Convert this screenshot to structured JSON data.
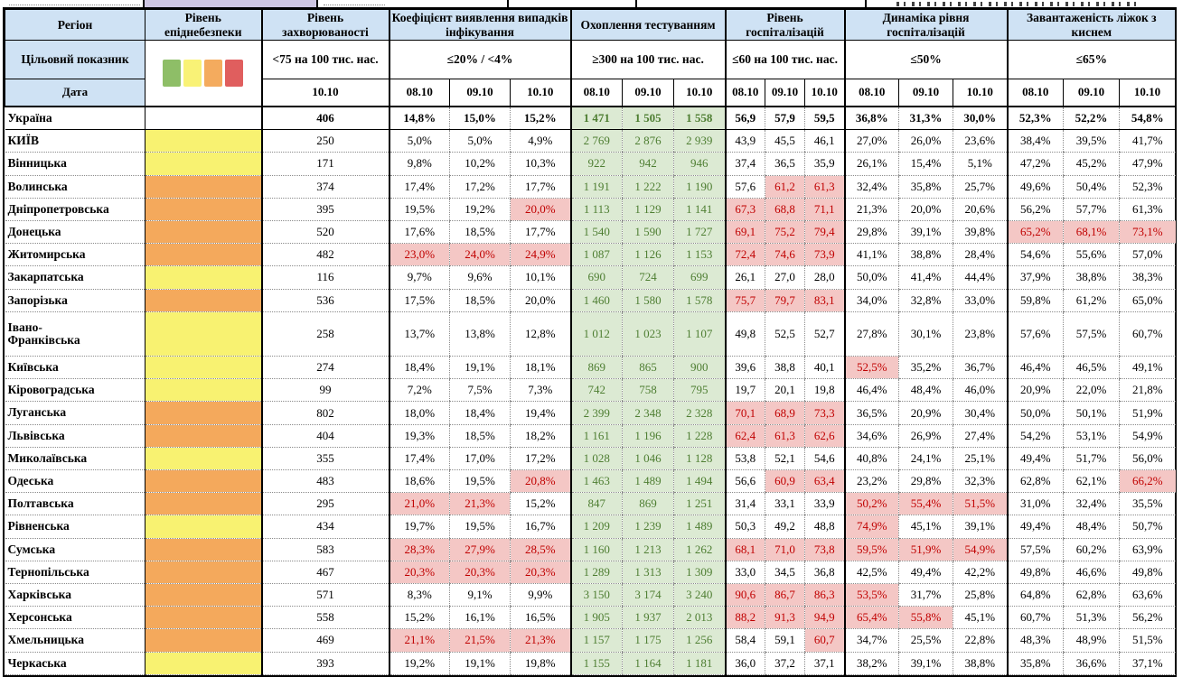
{
  "header": {
    "col_region": "Регіон",
    "col_danger": "Рівень епіднебезпеки",
    "col_morbidity": "Рівень захворюваності",
    "target_row_label": "Цільовий показник",
    "date_row_label": "Дата",
    "morbidity_criteria": "<75 на 100 тис. нас.",
    "morbidity_date": "10.10",
    "dates": [
      "08.10",
      "09.10",
      "10.10"
    ],
    "groups": [
      {
        "label": "Коефіцієнт виявлення випадків інфікування",
        "criteria": "≤20% / <4%"
      },
      {
        "label": "Охоплення тестуванням",
        "criteria": "≥300 на 100 тис. нас."
      },
      {
        "label": "Рівень госпіталізацій",
        "criteria": "≤60 на 100 тис. нас."
      },
      {
        "label": "Динаміка рівня госпіталізацій",
        "criteria": "≤50%"
      },
      {
        "label": "Завантаженість ліжок з киснем",
        "criteria": "≤65%"
      }
    ],
    "legend_colors": [
      "#8ebe67",
      "#f9f276",
      "#f4ab5e",
      "#e05e5e"
    ]
  },
  "colors": {
    "header_blue": "#cfe2f4",
    "danger_yellow": "#f8f271",
    "danger_orange": "#f4a95c",
    "testing_green_bg": "#dcead3",
    "testing_green_text": "#4e7e32",
    "alert_pink_bg": "#f4c7c5",
    "alert_red_text": "#c00000"
  },
  "rows": [
    {
      "region": "Україна",
      "bold": true,
      "danger": "",
      "morbidity": "406",
      "detection": [
        "14,8%",
        "15,0%",
        "15,2%"
      ],
      "testing": [
        "1 471",
        "1 505",
        "1 558"
      ],
      "hospital": [
        "56,9",
        "57,9",
        "59,5"
      ],
      "dynamics": [
        "36,8%",
        "31,3%",
        "30,0%"
      ],
      "oxygen": [
        "52,3%",
        "52,2%",
        "54,8%"
      ]
    },
    {
      "region": "КИЇВ",
      "danger": "yellow",
      "morbidity": "250",
      "detection": [
        "5,0%",
        "5,0%",
        "4,9%"
      ],
      "testing": [
        "2 769",
        "2 876",
        "2 939"
      ],
      "hospital": [
        "43,9",
        "45,5",
        "46,1"
      ],
      "dynamics": [
        "27,0%",
        "26,0%",
        "23,6%"
      ],
      "oxygen": [
        "38,4%",
        "39,5%",
        "41,7%"
      ]
    },
    {
      "region": "Вінницька",
      "danger": "yellow",
      "morbidity": "171",
      "detection": [
        "9,8%",
        "10,2%",
        "10,3%"
      ],
      "testing": [
        "922",
        "942",
        "946"
      ],
      "hospital": [
        "37,4",
        "36,5",
        "35,9"
      ],
      "dynamics": [
        "26,1%",
        "15,4%",
        "5,1%"
      ],
      "oxygen": [
        "47,2%",
        "45,2%",
        "47,9%"
      ]
    },
    {
      "region": "Волинська",
      "danger": "orange",
      "morbidity": "374",
      "detection": [
        "17,4%",
        "17,2%",
        "17,7%"
      ],
      "testing": [
        "1 191",
        "1 222",
        "1 190"
      ],
      "hospital": [
        "57,6",
        "61,2",
        "61,3"
      ],
      "hospital_flags": [
        0,
        1,
        1
      ],
      "dynamics": [
        "32,4%",
        "35,8%",
        "25,7%"
      ],
      "oxygen": [
        "49,6%",
        "50,4%",
        "52,3%"
      ]
    },
    {
      "region": "Дніпропетровська",
      "danger": "orange",
      "morbidity": "395",
      "detection": [
        "19,5%",
        "19,2%",
        "20,0%"
      ],
      "detection_flags": [
        0,
        0,
        1
      ],
      "testing": [
        "1 113",
        "1 129",
        "1 141"
      ],
      "hospital": [
        "67,3",
        "68,8",
        "71,1"
      ],
      "hospital_flags": [
        1,
        1,
        1
      ],
      "dynamics": [
        "21,3%",
        "20,0%",
        "20,6%"
      ],
      "oxygen": [
        "56,2%",
        "57,7%",
        "61,3%"
      ]
    },
    {
      "region": "Донецька",
      "danger": "orange",
      "morbidity": "520",
      "detection": [
        "17,6%",
        "18,5%",
        "17,7%"
      ],
      "testing": [
        "1 540",
        "1 590",
        "1 727"
      ],
      "hospital": [
        "69,1",
        "75,2",
        "79,4"
      ],
      "hospital_flags": [
        1,
        1,
        1
      ],
      "dynamics": [
        "29,8%",
        "39,1%",
        "39,8%"
      ],
      "oxygen": [
        "65,2%",
        "68,1%",
        "73,1%"
      ],
      "oxygen_flags": [
        1,
        1,
        1
      ]
    },
    {
      "region": "Житомирська",
      "danger": "orange",
      "morbidity": "482",
      "detection": [
        "23,0%",
        "24,0%",
        "24,9%"
      ],
      "detection_flags": [
        1,
        1,
        1
      ],
      "testing": [
        "1 087",
        "1 126",
        "1 153"
      ],
      "hospital": [
        "72,4",
        "74,6",
        "73,9"
      ],
      "hospital_flags": [
        1,
        1,
        1
      ],
      "dynamics": [
        "41,1%",
        "38,8%",
        "28,4%"
      ],
      "oxygen": [
        "54,6%",
        "55,6%",
        "57,0%"
      ]
    },
    {
      "region": "Закарпатська",
      "danger": "yellow",
      "morbidity": "116",
      "detection": [
        "9,7%",
        "9,6%",
        "10,1%"
      ],
      "testing": [
        "690",
        "724",
        "699"
      ],
      "hospital": [
        "26,1",
        "27,0",
        "28,0"
      ],
      "dynamics": [
        "50,0%",
        "41,4%",
        "44,4%"
      ],
      "oxygen": [
        "37,9%",
        "38,8%",
        "38,3%"
      ]
    },
    {
      "region": "Запорізька",
      "danger": "orange",
      "morbidity": "536",
      "detection": [
        "17,5%",
        "18,5%",
        "20,0%"
      ],
      "testing": [
        "1 460",
        "1 580",
        "1 578"
      ],
      "hospital": [
        "75,7",
        "79,7",
        "83,1"
      ],
      "hospital_flags": [
        1,
        1,
        1
      ],
      "dynamics": [
        "34,0%",
        "32,8%",
        "33,0%"
      ],
      "oxygen": [
        "59,8%",
        "61,2%",
        "65,0%"
      ]
    },
    {
      "region": "Івано-\nФранківська",
      "tall": true,
      "danger": "yellow",
      "morbidity": "258",
      "detection": [
        "13,7%",
        "13,8%",
        "12,8%"
      ],
      "testing": [
        "1 012",
        "1 023",
        "1 107"
      ],
      "hospital": [
        "49,8",
        "52,5",
        "52,7"
      ],
      "dynamics": [
        "27,8%",
        "30,1%",
        "23,8%"
      ],
      "oxygen": [
        "57,6%",
        "57,5%",
        "60,7%"
      ]
    },
    {
      "region": "Київська",
      "danger": "yellow",
      "morbidity": "274",
      "detection": [
        "18,4%",
        "19,1%",
        "18,1%"
      ],
      "testing": [
        "869",
        "865",
        "900"
      ],
      "hospital": [
        "39,6",
        "38,8",
        "40,1"
      ],
      "dynamics": [
        "52,5%",
        "35,2%",
        "36,7%"
      ],
      "dynamics_flags": [
        1,
        0,
        0
      ],
      "oxygen": [
        "46,4%",
        "46,5%",
        "49,1%"
      ]
    },
    {
      "region": "Кіровоградська",
      "danger": "yellow",
      "morbidity": "99",
      "detection": [
        "7,2%",
        "7,5%",
        "7,3%"
      ],
      "testing": [
        "742",
        "758",
        "795"
      ],
      "hospital": [
        "19,7",
        "20,1",
        "19,8"
      ],
      "dynamics": [
        "46,4%",
        "48,4%",
        "46,0%"
      ],
      "oxygen": [
        "20,9%",
        "22,0%",
        "21,8%"
      ]
    },
    {
      "region": "Луганська",
      "danger": "orange",
      "morbidity": "802",
      "detection": [
        "18,0%",
        "18,4%",
        "19,4%"
      ],
      "testing": [
        "2 399",
        "2 348",
        "2 328"
      ],
      "hospital": [
        "70,1",
        "68,9",
        "73,3"
      ],
      "hospital_flags": [
        1,
        1,
        1
      ],
      "dynamics": [
        "36,5%",
        "20,9%",
        "30,4%"
      ],
      "oxygen": [
        "50,0%",
        "50,1%",
        "51,9%"
      ]
    },
    {
      "region": "Львівська",
      "danger": "orange",
      "morbidity": "404",
      "detection": [
        "19,3%",
        "18,5%",
        "18,2%"
      ],
      "testing": [
        "1 161",
        "1 196",
        "1 228"
      ],
      "hospital": [
        "62,4",
        "61,3",
        "62,6"
      ],
      "hospital_flags": [
        1,
        1,
        1
      ],
      "dynamics": [
        "34,6%",
        "26,9%",
        "27,4%"
      ],
      "oxygen": [
        "54,2%",
        "53,1%",
        "54,9%"
      ]
    },
    {
      "region": "Миколаївська",
      "danger": "yellow",
      "morbidity": "355",
      "detection": [
        "17,4%",
        "17,0%",
        "17,2%"
      ],
      "testing": [
        "1 028",
        "1 046",
        "1 128"
      ],
      "hospital": [
        "53,8",
        "52,1",
        "54,6"
      ],
      "dynamics": [
        "40,8%",
        "24,1%",
        "25,1%"
      ],
      "oxygen": [
        "49,4%",
        "51,7%",
        "56,0%"
      ]
    },
    {
      "region": "Одеська",
      "danger": "orange",
      "morbidity": "483",
      "detection": [
        "18,6%",
        "19,5%",
        "20,8%"
      ],
      "detection_flags": [
        0,
        0,
        1
      ],
      "testing": [
        "1 463",
        "1 489",
        "1 494"
      ],
      "hospital": [
        "56,6",
        "60,9",
        "63,4"
      ],
      "hospital_flags": [
        0,
        1,
        1
      ],
      "dynamics": [
        "23,2%",
        "29,8%",
        "32,3%"
      ],
      "oxygen": [
        "62,8%",
        "62,1%",
        "66,2%"
      ],
      "oxygen_flags": [
        0,
        0,
        1
      ]
    },
    {
      "region": "Полтавська",
      "danger": "orange",
      "morbidity": "295",
      "detection": [
        "21,0%",
        "21,3%",
        "15,2%"
      ],
      "detection_flags": [
        1,
        1,
        0
      ],
      "testing": [
        "847",
        "869",
        "1 251"
      ],
      "hospital": [
        "31,4",
        "33,1",
        "33,9"
      ],
      "dynamics": [
        "50,2%",
        "55,4%",
        "51,5%"
      ],
      "dynamics_flags": [
        1,
        1,
        1
      ],
      "oxygen": [
        "31,0%",
        "32,4%",
        "35,5%"
      ]
    },
    {
      "region": "Рівненська",
      "danger": "yellow",
      "morbidity": "434",
      "detection": [
        "19,7%",
        "19,5%",
        "16,7%"
      ],
      "testing": [
        "1 209",
        "1 239",
        "1 489"
      ],
      "hospital": [
        "50,3",
        "49,2",
        "48,8"
      ],
      "dynamics": [
        "74,9%",
        "45,1%",
        "39,1%"
      ],
      "dynamics_flags": [
        1,
        0,
        0
      ],
      "oxygen": [
        "49,4%",
        "48,4%",
        "50,7%"
      ]
    },
    {
      "region": "Сумська",
      "danger": "orange",
      "morbidity": "583",
      "detection": [
        "28,3%",
        "27,9%",
        "28,5%"
      ],
      "detection_flags": [
        1,
        1,
        1
      ],
      "testing": [
        "1 160",
        "1 213",
        "1 262"
      ],
      "hospital": [
        "68,1",
        "71,0",
        "73,8"
      ],
      "hospital_flags": [
        1,
        1,
        1
      ],
      "dynamics": [
        "59,5%",
        "51,9%",
        "54,9%"
      ],
      "dynamics_flags": [
        1,
        1,
        1
      ],
      "oxygen": [
        "57,5%",
        "60,2%",
        "63,9%"
      ]
    },
    {
      "region": "Тернопільська",
      "danger": "orange",
      "morbidity": "467",
      "detection": [
        "20,3%",
        "20,3%",
        "20,3%"
      ],
      "detection_flags": [
        1,
        1,
        1
      ],
      "testing": [
        "1 289",
        "1 313",
        "1 309"
      ],
      "hospital": [
        "33,0",
        "34,5",
        "36,8"
      ],
      "dynamics": [
        "42,5%",
        "49,4%",
        "42,2%"
      ],
      "oxygen": [
        "49,8%",
        "46,6%",
        "49,8%"
      ]
    },
    {
      "region": "Харківська",
      "danger": "orange",
      "morbidity": "571",
      "detection": [
        "8,3%",
        "9,1%",
        "9,9%"
      ],
      "testing": [
        "3 150",
        "3 174",
        "3 240"
      ],
      "hospital": [
        "90,6",
        "86,7",
        "86,3"
      ],
      "hospital_flags": [
        1,
        1,
        1
      ],
      "dynamics": [
        "53,5%",
        "31,7%",
        "25,8%"
      ],
      "dynamics_flags": [
        1,
        0,
        0
      ],
      "oxygen": [
        "64,8%",
        "62,8%",
        "63,6%"
      ]
    },
    {
      "region": "Херсонська",
      "danger": "orange",
      "morbidity": "558",
      "detection": [
        "15,2%",
        "16,1%",
        "16,5%"
      ],
      "testing": [
        "1 905",
        "1 937",
        "2 013"
      ],
      "hospital": [
        "88,2",
        "91,3",
        "94,9"
      ],
      "hospital_flags": [
        1,
        1,
        1
      ],
      "dynamics": [
        "65,4%",
        "55,8%",
        "45,1%"
      ],
      "dynamics_flags": [
        1,
        1,
        0
      ],
      "oxygen": [
        "60,7%",
        "51,3%",
        "56,2%"
      ]
    },
    {
      "region": "Хмельницька",
      "danger": "orange",
      "morbidity": "469",
      "detection": [
        "21,1%",
        "21,5%",
        "21,3%"
      ],
      "detection_flags": [
        1,
        1,
        1
      ],
      "testing": [
        "1 157",
        "1 175",
        "1 256"
      ],
      "hospital": [
        "58,4",
        "59,1",
        "60,7"
      ],
      "hospital_flags": [
        0,
        0,
        1
      ],
      "dynamics": [
        "34,7%",
        "25,5%",
        "22,8%"
      ],
      "oxygen": [
        "48,3%",
        "48,9%",
        "51,5%"
      ]
    },
    {
      "region": "Черкаська",
      "danger": "yellow",
      "morbidity": "393",
      "detection": [
        "19,2%",
        "19,1%",
        "19,8%"
      ],
      "testing": [
        "1 155",
        "1 164",
        "1 181"
      ],
      "hospital": [
        "36,0",
        "37,2",
        "37,1"
      ],
      "dynamics": [
        "38,2%",
        "39,1%",
        "38,8%"
      ],
      "oxygen": [
        "35,8%",
        "36,6%",
        "37,1%"
      ]
    }
  ]
}
